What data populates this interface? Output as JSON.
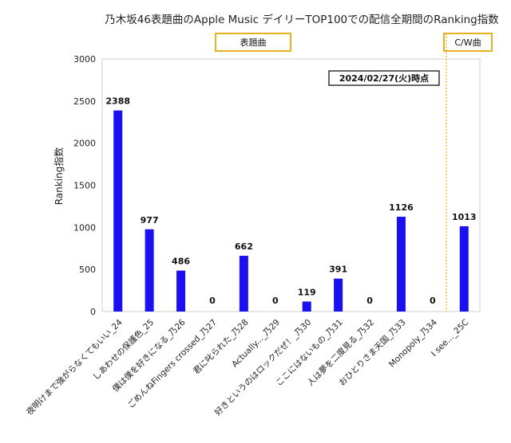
{
  "chart_data": {
    "type": "bar",
    "title": "乃木坂46表題曲のApple Music デイリーTOP100での配信全期間のRanking指数",
    "ylabel": "Ranking指数",
    "xlabel": "",
    "ylim": [
      0,
      3000
    ],
    "yticks": [
      0,
      500,
      1000,
      1500,
      2000,
      2500,
      3000
    ],
    "grid": false,
    "categories": [
      "夜明けまで強がらなくてもいい_24",
      "しあわせの保護色_25",
      "僕は僕を好きになる_乃26",
      "ごめんねFingers crossed_乃27",
      "君に叱られた_乃28",
      "Actually..._乃29",
      "好きというのはロックだぜ！_乃30",
      "ここにはないもの_乃31",
      "人は夢を二度見る_乃32",
      "おひとりさま天国_乃33",
      "Monopoly_乃34",
      "I see..._25C"
    ],
    "values": [
      2388,
      977,
      486,
      0,
      662,
      0,
      119,
      391,
      0,
      1126,
      0,
      1013
    ],
    "bar_color": "#1a10f0",
    "annotations": {
      "section_title_a": "表題曲",
      "section_title_b": "C/W曲",
      "date_note": "2024/02/27(火)時点",
      "box_border_color": "#e6b21e",
      "divider_color": "#e6b21e"
    }
  }
}
